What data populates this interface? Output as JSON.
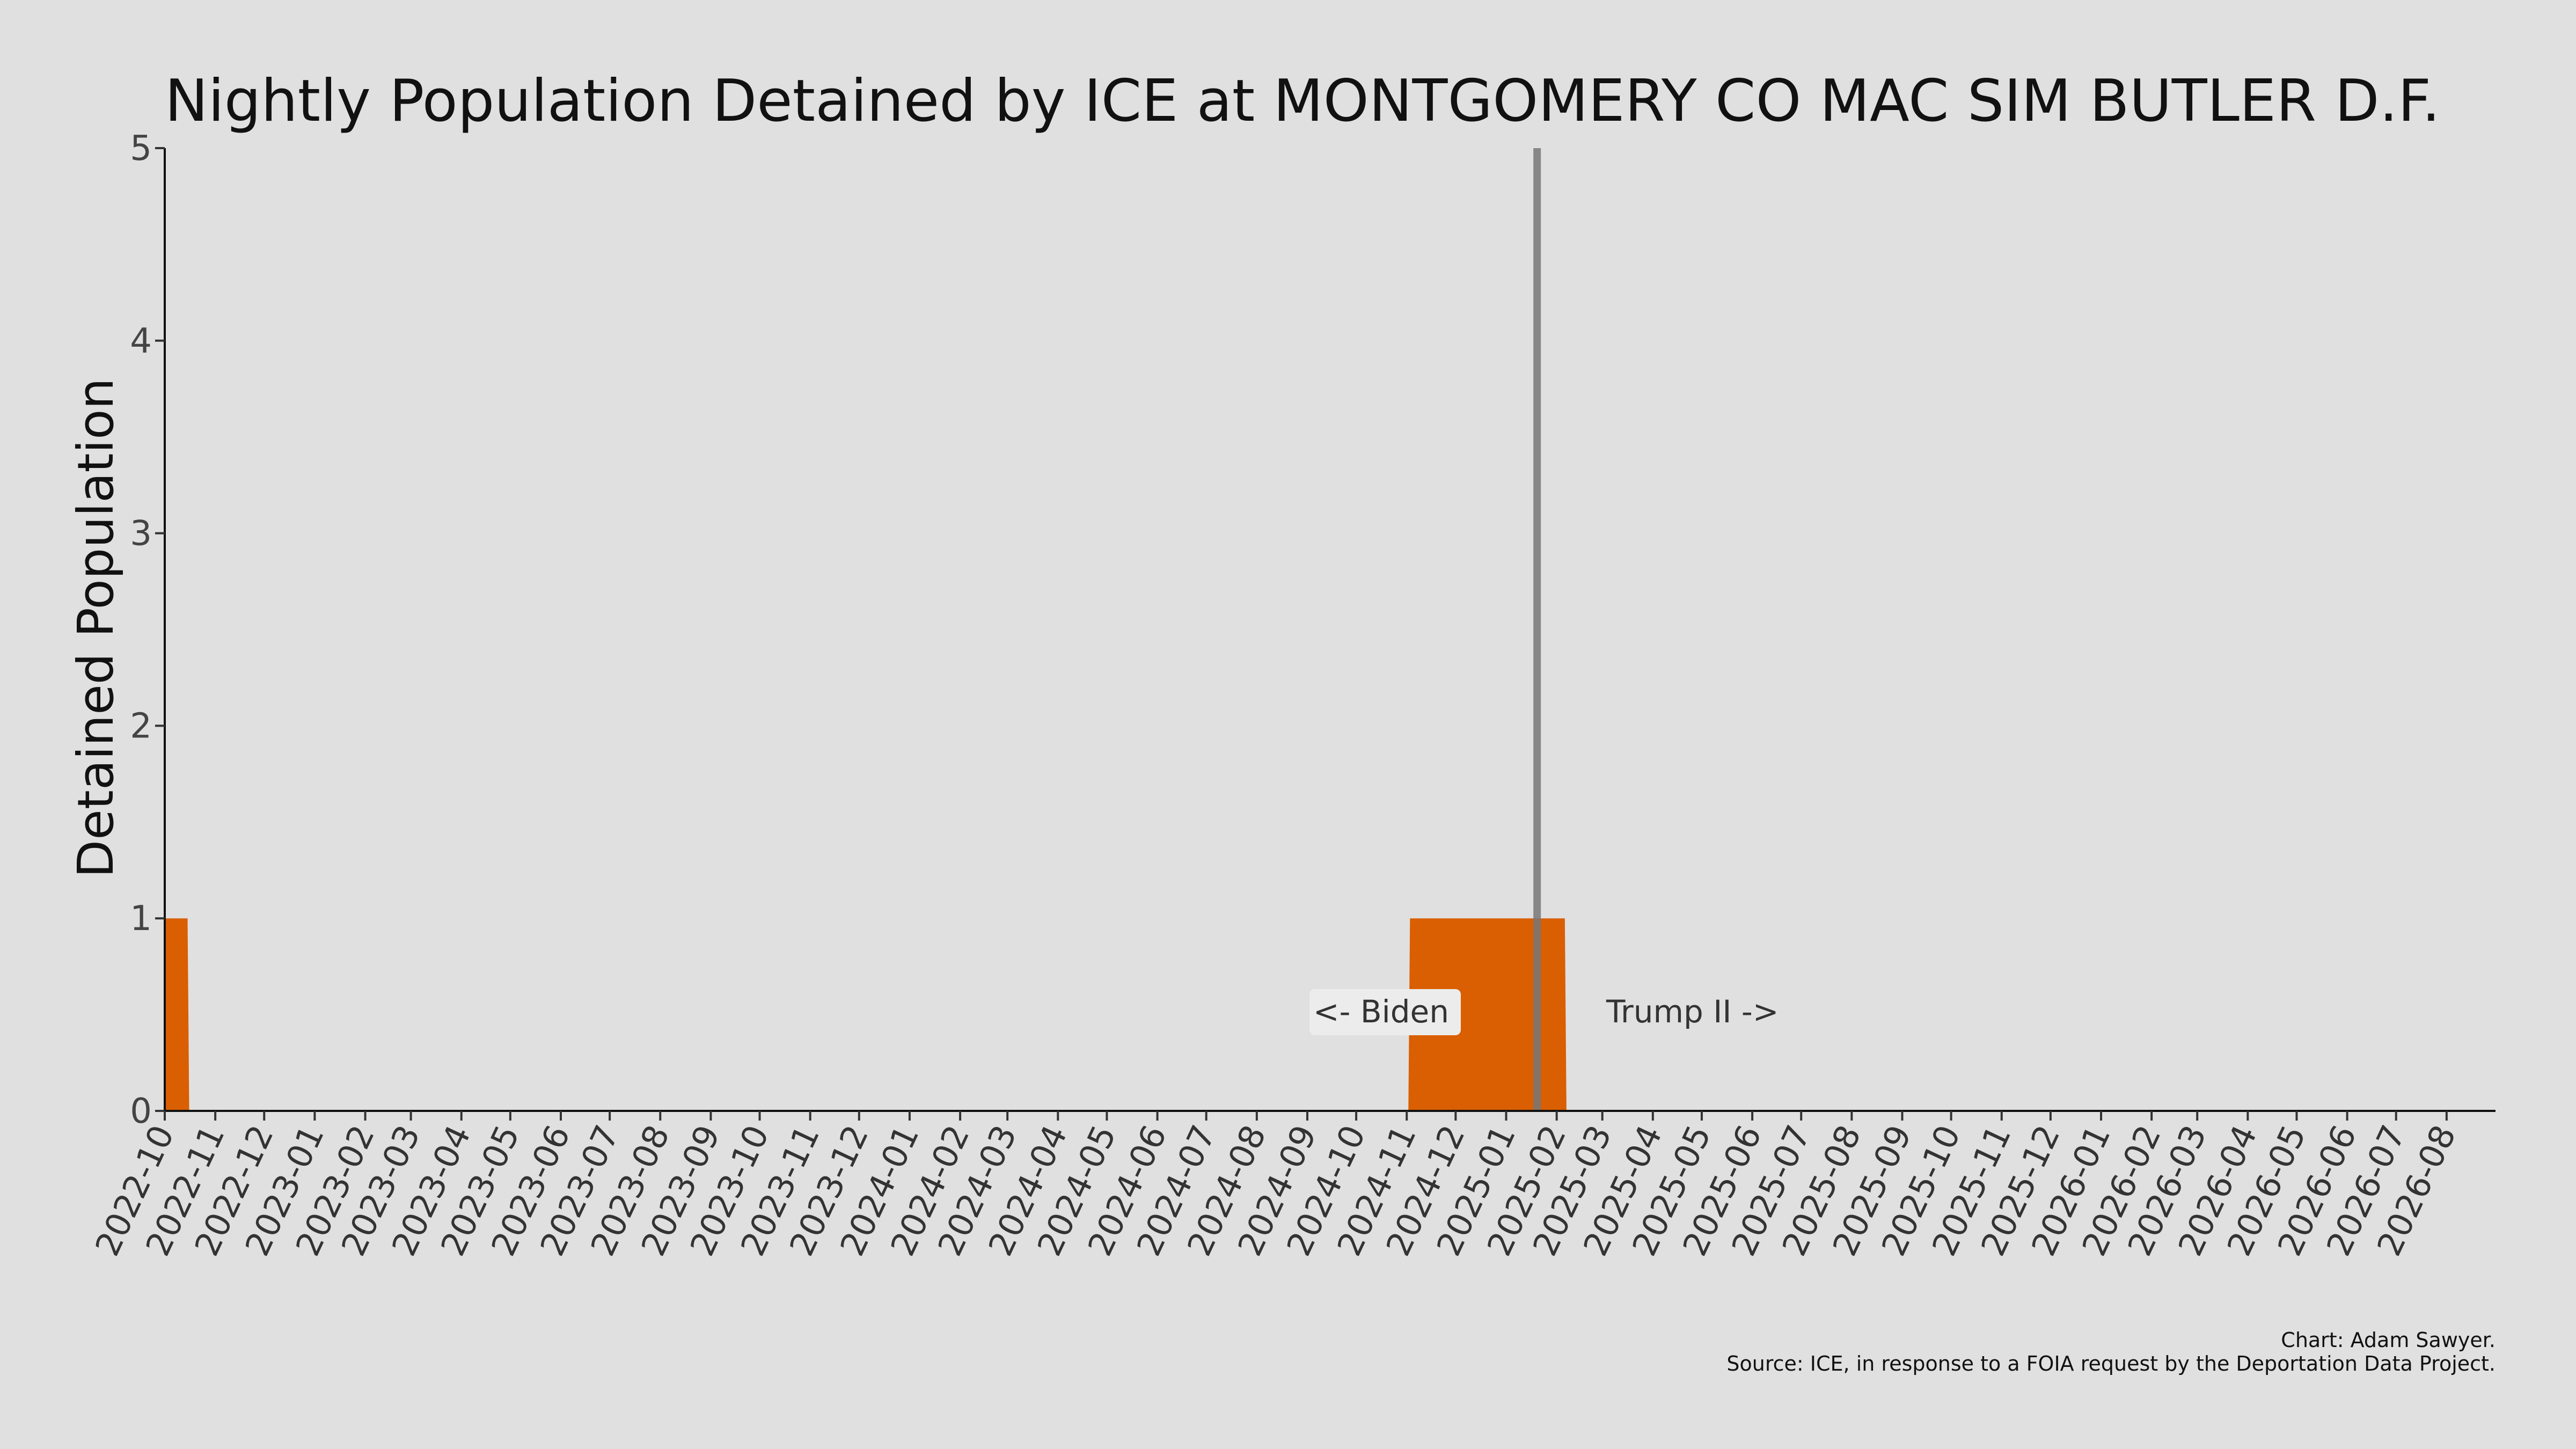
{
  "chart_data": {
    "type": "area",
    "title": "Nightly Population Detained by ICE at MONTGOMERY CO MAC SIM BUTLER D.F.",
    "xlabel": "",
    "ylabel": "Detained Population",
    "ylim": [
      0,
      5
    ],
    "yticks": [
      "0",
      "1",
      "2",
      "3",
      "4",
      "5"
    ],
    "xlim": [
      "2022-10-01",
      "2026-08-31"
    ],
    "xticks": [
      "2022-10",
      "2022-11",
      "2022-12",
      "2023-01",
      "2023-02",
      "2023-03",
      "2023-04",
      "2023-05",
      "2023-06",
      "2023-07",
      "2023-08",
      "2023-09",
      "2023-10",
      "2023-11",
      "2023-12",
      "2024-01",
      "2024-02",
      "2024-03",
      "2024-04",
      "2024-05",
      "2024-06",
      "2024-07",
      "2024-08",
      "2024-09",
      "2024-10",
      "2024-11",
      "2024-12",
      "2025-01",
      "2025-02",
      "2025-03",
      "2025-04",
      "2025-05",
      "2025-06",
      "2025-07",
      "2025-08",
      "2025-09",
      "2025-10",
      "2025-11",
      "2025-12",
      "2026-01",
      "2026-02",
      "2026-03",
      "2026-04",
      "2026-05",
      "2026-06",
      "2026-07",
      "2026-08"
    ],
    "series": [
      {
        "color": "#d95f02",
        "points": [
          {
            "x": "2022-10-01",
            "y": 1
          },
          {
            "x": "2022-10-15",
            "y": 1
          },
          {
            "x": "2022-10-16",
            "y": 0
          },
          {
            "x": "2024-11-02",
            "y": 0
          },
          {
            "x": "2024-11-03",
            "y": 1
          },
          {
            "x": "2025-02-06",
            "y": 1
          },
          {
            "x": "2025-02-07",
            "y": 0
          },
          {
            "x": "2026-08-31",
            "y": 0
          }
        ]
      }
    ],
    "vline": {
      "x": "2025-01-20",
      "color": "#777777"
    },
    "annotations": {
      "left": "<- Biden",
      "right": "Trump II ->"
    },
    "caption": {
      "line1": "Chart: Adam Sawyer.",
      "line2": "Source: ICE, in response to a FOIA request by the Deportation Data Project."
    },
    "grid": false,
    "legend": "none"
  }
}
